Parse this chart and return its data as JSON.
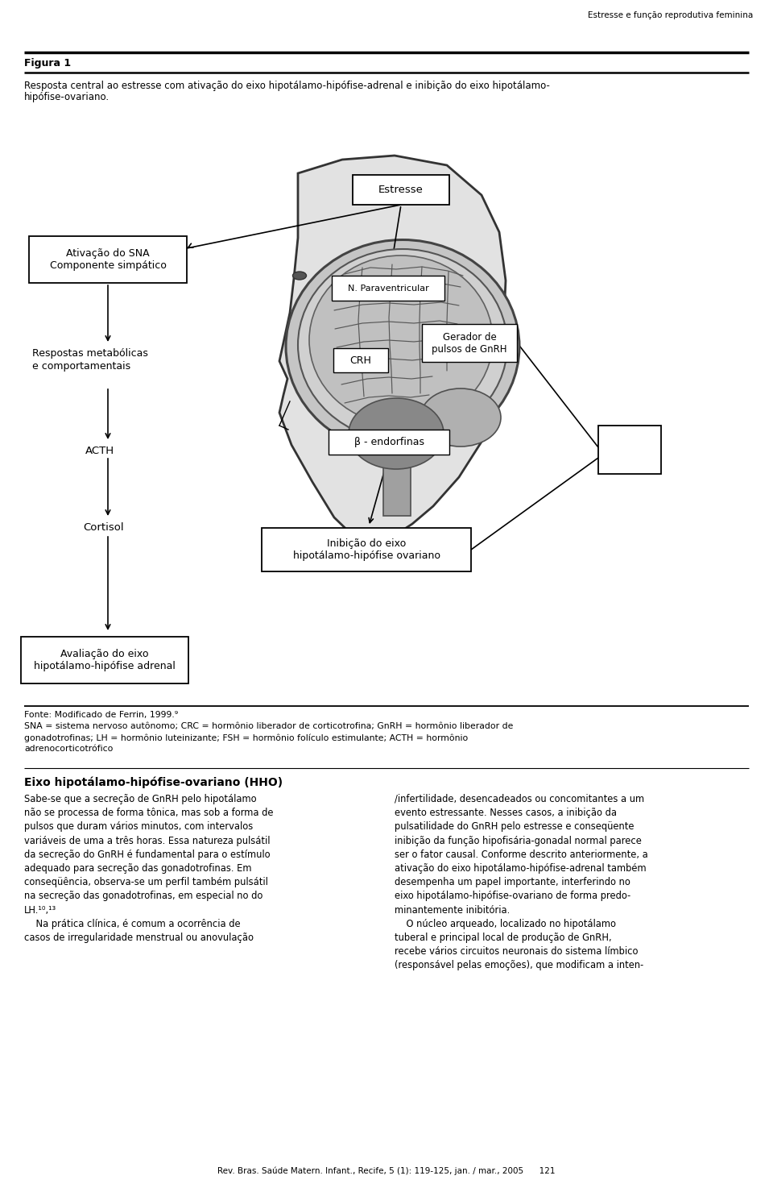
{
  "header_right": "Estresse e função reprodutiva feminina",
  "figure_label": "Figura 1",
  "caption_line1": "Resposta central ao estresse com ativação do eixo hipotálamo-hipófise-adrenal e inibição do eixo hipotálamo-",
  "caption_line2": "hipófise-ovariano.",
  "footer_line1": "Fonte: Modificado de Ferrin, 1999.⁹",
  "footer_line2": "SNA = sistema nervoso autônomo; CRC = hormônio liberador de corticotrofina; GnRH = hormônio liberador de",
  "footer_line3": "gonadotrofinas; LH = hormônio luteinizante; FSH = hormônio folículo estimulante; ACTH = hormônio",
  "footer_line4": "adrenocorticotrófico",
  "body_title": "Eixo hipotálamo-hipófise-ovariano (HHO)",
  "left_col": "Sabe-se que a secreção de GnRH pelo hipotálamo\nnão se processa de forma tônica, mas sob a forma de\npulsos que duram vários minutos, com intervalos\nvariáveis de uma a três horas. Essa natureza pulsátil\nda secreção do GnRH é fundamental para o estímulo\nadequado para secreção das gonadotrofinas. Em\nconseqüência, observa-se um perfil também pulsátil\nna secreção das gonadotrofinas, em especial no do\nLH.¹⁰,¹³\n    Na prática clínica, é comum a ocorrência de\ncasos de irregularidade menstrual ou anovulação",
  "right_col": "/infertilidade, desencadeados ou concomitantes a um\nevento estressante. Nesses casos, a inibição da\npulsatilidade do GnRH pelo estresse e conseqüente\ninibição da função hipofisária-gonadal normal parece\nser o fator causal. Conforme descrito anteriormente, a\nativação do eixo hipotálamo-hipófise-adrenal também\ndesempenha um papel importante, interferindo no\neixo hipotálamo-hipófise-ovariano de forma predo-\nminantemente inibitória.\n    O núcleo arqueado, localizado no hipotálamo\ntuberal e principal local de produção de GnRH,\nrecebe vários circuitos neuronais do sistema límbico\n(responsável pelas emoções), que modificam a inten-",
  "page_footer": "Rev. Bras. Saúde Matern. Infant., Recife, 5 (1): 119-125, jan. / mar., 2005      121",
  "bg": "#ffffff"
}
